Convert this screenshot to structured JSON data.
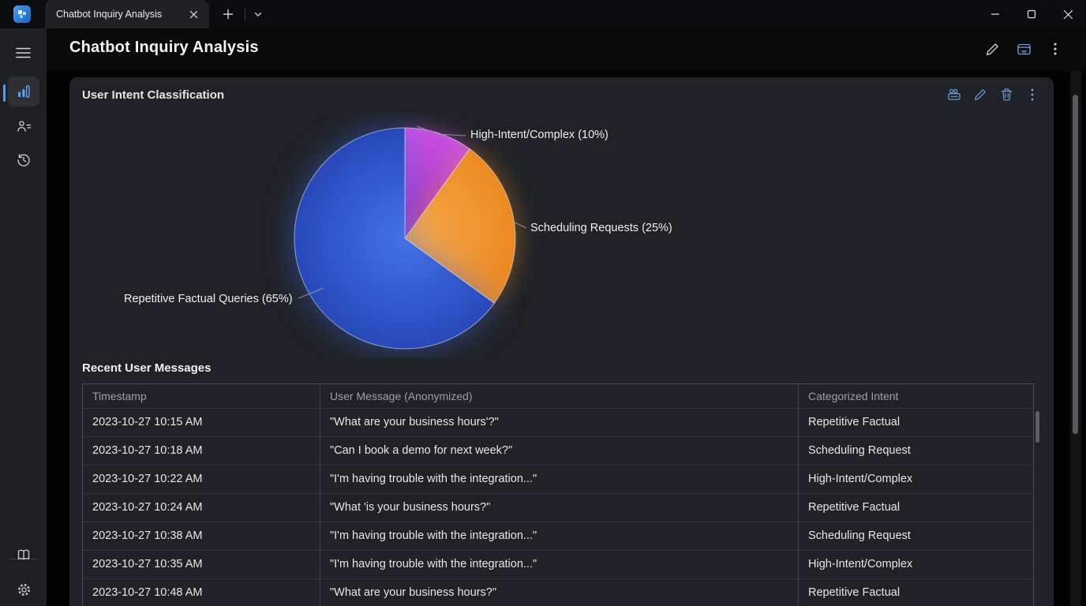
{
  "window": {
    "app_name": "Chatbot Inquiry Analysis",
    "controls": {
      "minimize": "minimize",
      "maximize": "maximize",
      "close": "close"
    }
  },
  "tabbar": {
    "tab": {
      "title": "Chatbot Inquiry Analysis",
      "close_glyph": "✕"
    },
    "new_tab_glyph": "+"
  },
  "header": {
    "title": "Chatbot Inquiry Analysis",
    "actions": [
      "edit",
      "open-in-window",
      "more-options"
    ]
  },
  "sidebar": {
    "items": [
      {
        "name": "menu",
        "icon": "hamburger-icon"
      },
      {
        "name": "analytics",
        "icon": "bar-chart-icon",
        "active": true
      },
      {
        "name": "contacts",
        "icon": "person-list-icon"
      },
      {
        "name": "history",
        "icon": "history-icon"
      },
      {
        "name": "library",
        "icon": "book-icon"
      },
      {
        "name": "settings",
        "icon": "gear-icon"
      }
    ],
    "accent_color": "#4f9cf0"
  },
  "card": {
    "title": "User Intent Classification",
    "actions": [
      "slideshow",
      "edit",
      "delete",
      "more-options"
    ],
    "action_color": "#6d9fd6"
  },
  "chart_data": {
    "type": "pie",
    "title": "User Intent Classification",
    "start_angle_deg": 0,
    "direction": "clockwise",
    "legend_position": "callout-labels",
    "slices": [
      {
        "label": "High-Intent/Complex",
        "value": 10,
        "display": "High-Intent/Complex (10%)",
        "color": "#b13ad1",
        "color_inner": "#9a33be",
        "color_outer": "#c94fe2"
      },
      {
        "label": "Scheduling Requests",
        "value": 25,
        "display": "Scheduling Requests (25%)",
        "color": "#f0922f",
        "color_inner": "#f8ab50",
        "color_outer": "#ec8a22"
      },
      {
        "label": "Repetitive Factual Queries",
        "value": 65,
        "display": "Repetitive Factual Queries (65%)",
        "color": "#2e55cd",
        "color_inner": "#4372e6",
        "color_outer": "#2749ba"
      }
    ]
  },
  "table": {
    "heading": "Recent User Messages",
    "columns": [
      "Timestamp",
      "User Message (Anonymized)",
      "Categorized Intent"
    ],
    "rows": [
      [
        "2023-10-27 10:15 AM",
        "\"What are your business hours'?\"",
        "Repetitive Factual"
      ],
      [
        "2023-10-27 10:18 AM",
        "\"Can I book a demo for next week?\"",
        "Scheduling Request"
      ],
      [
        "2023-10-27 10:22 AM",
        "\"I'm having trouble with the integration...\"",
        "High-Intent/Complex"
      ],
      [
        "2023-10-27 10:24 AM",
        "\"What 'is your business hours?\"",
        "Repetitive Factual"
      ],
      [
        "2023-10-27 10:38 AM",
        "\"I'm having trouble with the integration...\"",
        "Scheduling Request"
      ],
      [
        "2023-10-27 10:35 AM",
        "\"I'm having trouble with the integration...\"",
        "High-Intent/Complex"
      ],
      [
        "2023-10-27 10:48 AM",
        "\"What are your business hours?\"",
        "Repetitive Factual"
      ]
    ]
  }
}
